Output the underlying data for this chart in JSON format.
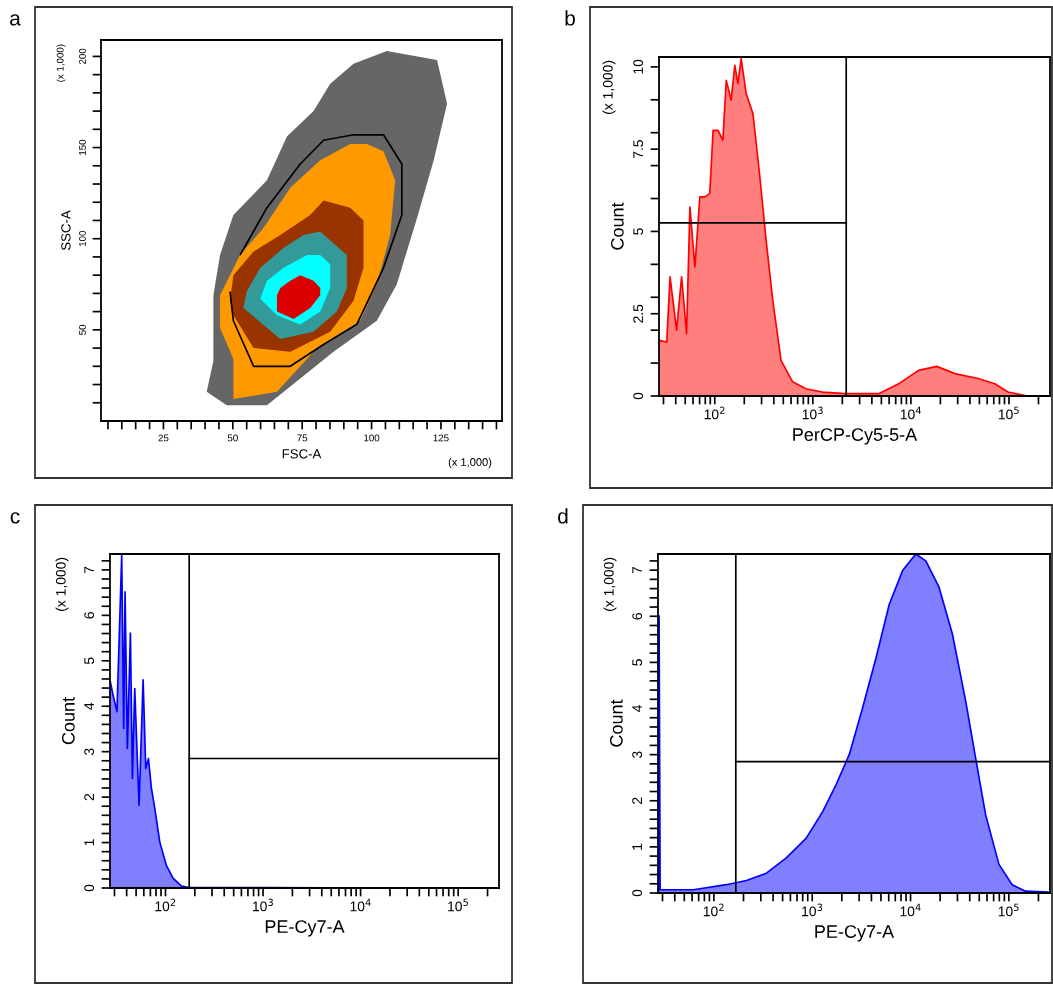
{
  "chart_data": [
    {
      "type": "area",
      "title": "a",
      "xlabel": "FSC-A",
      "ylabel": "SSC-A",
      "annotations": [
        "(x 1,000)",
        "(x 1,000)"
      ],
      "xlim": [
        2.5,
        147
      ],
      "ylim": [
        0,
        209
      ],
      "xticks": [
        {
          "value": 5,
          "label": null
        },
        {
          "value": 10,
          "label": null
        },
        {
          "value": 15,
          "label": null
        },
        {
          "value": 20,
          "label": null
        },
        25,
        {
          "value": 30,
          "label": null
        },
        {
          "value": 35,
          "label": null
        },
        {
          "value": 40,
          "label": null
        },
        {
          "value": 45,
          "label": null
        },
        50,
        {
          "value": 55,
          "label": null
        },
        {
          "value": 60,
          "label": null
        },
        {
          "value": 65,
          "label": null
        },
        {
          "value": 70,
          "label": null
        },
        75,
        {
          "value": 80,
          "label": null
        },
        {
          "value": 85,
          "label": null
        },
        {
          "value": 90,
          "label": null
        },
        {
          "value": 95,
          "label": null
        },
        100,
        {
          "value": 105,
          "label": null
        },
        {
          "value": 110,
          "label": null
        },
        {
          "value": 115,
          "label": null
        },
        {
          "value": 120,
          "label": null
        },
        125,
        {
          "value": 130,
          "label": null
        },
        {
          "value": 135,
          "label": null
        },
        {
          "value": 140,
          "label": null
        },
        {
          "value": 145,
          "label": null
        }
      ],
      "yticks": [
        {
          "value": 10,
          "label": null
        },
        {
          "value": 20,
          "label": null
        },
        {
          "value": 30,
          "label": null
        },
        {
          "value": 40,
          "label": null
        },
        50,
        {
          "value": 60,
          "label": null
        },
        {
          "value": 70,
          "label": null
        },
        {
          "value": 80,
          "label": null
        },
        {
          "value": 90,
          "label": null
        },
        100,
        {
          "value": 110,
          "label": null
        },
        {
          "value": 120,
          "label": null
        },
        {
          "value": 130,
          "label": null
        },
        {
          "value": 140,
          "label": null
        },
        150,
        {
          "value": 160,
          "label": null
        },
        {
          "value": 170,
          "label": null
        },
        {
          "value": 180,
          "label": null
        },
        {
          "value": 190,
          "label": null
        },
        200
      ],
      "series": [
        {
          "color": "#666666",
          "x": [
            40.6,
            47.8,
            62.3,
            86.3,
            101.9,
            109.1,
            116.3,
            122.4,
            127.2,
            123.6,
            105.5,
            93.5,
            85.1,
            79.1,
            69.5,
            62.3,
            50.2,
            45.4,
            43.0,
            43.0
          ],
          "values": [
            16,
            8.7,
            8.7,
            38,
            55,
            75,
            111,
            143,
            174,
            198,
            203,
            196,
            185,
            170,
            156,
            132,
            113,
            91,
            69,
            33
          ]
        },
        {
          "color": "#ff9900",
          "x": [
            50.2,
            65.9,
            80.3,
            95.9,
            101.9,
            106.7,
            108.5,
            104.3,
            98.3,
            92.3,
            81.5,
            70.7,
            61.1,
            52.6,
            45.4,
            45.4,
            50.2
          ],
          "values": [
            12,
            16,
            40,
            55,
            75,
            102,
            132,
            148,
            152,
            152,
            143,
            128,
            106,
            91,
            69,
            51,
            34
          ]
        },
        {
          "color": "#993300",
          "x": [
            50.2,
            57.5,
            70.7,
            85.1,
            93.5,
            97.1,
            97.1,
            92.3,
            82.7,
            77.9,
            67.1,
            57.5,
            50.2,
            49.0
          ],
          "values": [
            58,
            40,
            38,
            49,
            66,
            84,
            110,
            117,
            121,
            113,
            102,
            93,
            80,
            66
          ]
        },
        {
          "color": "#339999",
          "x": [
            53.8,
            67.1,
            79.1,
            87.5,
            91.1,
            91.1,
            85.1,
            81.5,
            75.5,
            68.3,
            59.9,
            55.0
          ],
          "values": [
            62,
            45,
            49,
            60,
            73,
            91,
            99,
            104,
            102,
            95,
            84,
            71
          ]
        },
        {
          "color": "#00ffff",
          "x": [
            59.9,
            65.9,
            74.3,
            81.5,
            85.1,
            85.1,
            81.5,
            76.7,
            68.3,
            62.3
          ],
          "values": [
            67,
            58,
            53,
            60,
            73,
            86,
            91,
            91,
            84,
            77
          ]
        },
        {
          "color": "#dd0000",
          "x": [
            65.9,
            65.9,
            71.9,
            77.9,
            81.5,
            81.5,
            79.1,
            74.3,
            70.7,
            67.1
          ],
          "values": [
            69,
            60,
            56,
            62,
            69,
            73,
            77,
            80,
            77,
            73
          ]
        },
        {
          "type": "line",
          "color": "#000000",
          "x": [
            49.0,
            50.2,
            57.5,
            70.7,
            82.7,
            94.7,
            104.3,
            110.9,
            110.9,
            104.3,
            93.5,
            82.7,
            74.3,
            62.3,
            52.6
          ],
          "values": [
            71,
            55,
            30,
            30,
            42,
            53,
            84,
            113,
            141,
            157,
            157,
            154,
            141,
            117,
            91
          ]
        }
      ]
    },
    {
      "type": "area",
      "title": "b",
      "xlabel": "PerCP-Cy5-5-A",
      "ylabel": "Count",
      "annotations": [
        "(x 1,000)"
      ],
      "log": "x",
      "xlim": [
        27,
        262144
      ],
      "ylim": [
        0,
        10.3
      ],
      "xticks": [
        {
          "value": 100,
          "label": "10$^{2}$"
        },
        {
          "value": 1000,
          "label": "10$^{3}$"
        },
        {
          "value": 10000,
          "label": "10$^{4}$"
        },
        {
          "value": 100000,
          "label": "10$^{5}$"
        }
      ],
      "yticks": [
        0,
        {
          "value": 1,
          "label": null
        },
        {
          "value": 2,
          "label": null
        },
        2.5,
        {
          "value": 3,
          "label": null
        },
        {
          "value": 4,
          "label": null
        },
        5,
        {
          "value": 6,
          "label": null
        },
        {
          "value": 7,
          "label": null
        },
        7.5,
        {
          "value": 8,
          "label": null
        },
        {
          "value": 9,
          "label": null
        },
        10
      ],
      "ref_lines": [
        {
          "axis": "x",
          "value": 2190,
          "color": "#000000"
        }
      ],
      "series": [
        {
          "color": "#ff0000",
          "x": [
            27.3,
            32.4,
            35,
            40.8,
            45.9,
            51.6,
            55.8,
            62.7,
            70.5,
            79.2,
            88.9,
            96.2,
            108,
            121,
            131,
            147,
            160,
            172,
            186,
            209,
            245,
            286,
            334,
            390,
            474,
            622,
            849,
            1253,
            2160,
            4700,
            7500,
            11970,
            18360,
            28100,
            48500,
            71600,
            97700,
            144000
          ],
          "values": [
            1.69,
            1.64,
            3.62,
            2.0,
            3.62,
            1.89,
            5.74,
            3.92,
            6.05,
            6.05,
            6.15,
            8.07,
            8.07,
            7.77,
            9.59,
            8.99,
            10.05,
            9.49,
            10.25,
            9.19,
            8.58,
            6.76,
            4.73,
            2.91,
            1.08,
            0.43,
            0.22,
            0.12,
            0.07,
            0.07,
            0.37,
            0.78,
            0.9,
            0.68,
            0.53,
            0.37,
            0.12,
            0.02
          ]
        },
        {
          "type": "line",
          "color": "#000000",
          "x": [
            27,
            2190
          ],
          "values": [
            5.26,
            5.26
          ]
        }
      ]
    },
    {
      "type": "area",
      "title": "c",
      "xlabel": "PE-Cy7-A",
      "ylabel": "Count",
      "annotations": [
        "(x 1,000)"
      ],
      "log": "x",
      "xlim": [
        27,
        262144
      ],
      "ylim": [
        0,
        7.35
      ],
      "xticks": [
        {
          "value": 100,
          "label": "10$^{2}$"
        },
        {
          "value": 1000,
          "label": "10$^{3}$"
        },
        {
          "value": 10000,
          "label": "10$^{4}$"
        },
        {
          "value": 100000,
          "label": "10$^{5}$"
        }
      ],
      "yticks": [
        0,
        {
          "value": 0.2,
          "label": null
        },
        {
          "value": 0.4,
          "label": null
        },
        {
          "value": 0.6,
          "label": null
        },
        {
          "value": 0.8,
          "label": null
        },
        1,
        {
          "value": 1.2,
          "label": null
        },
        {
          "value": 1.4,
          "label": null
        },
        {
          "value": 1.6,
          "label": null
        },
        {
          "value": 1.8,
          "label": null
        },
        2,
        {
          "value": 2.2,
          "label": null
        },
        {
          "value": 2.4,
          "label": null
        },
        {
          "value": 2.6,
          "label": null
        },
        {
          "value": 2.8,
          "label": null
        },
        3,
        {
          "value": 3.2,
          "label": null
        },
        {
          "value": 3.4,
          "label": null
        },
        {
          "value": 3.6,
          "label": null
        },
        {
          "value": 3.8,
          "label": null
        },
        4,
        {
          "value": 4.2,
          "label": null
        },
        {
          "value": 4.4,
          "label": null
        },
        {
          "value": 4.6,
          "label": null
        },
        {
          "value": 4.8,
          "label": null
        },
        5,
        {
          "value": 5.2,
          "label": null
        },
        {
          "value": 5.4,
          "label": null
        },
        {
          "value": 5.6,
          "label": null
        },
        {
          "value": 5.8,
          "label": null
        },
        6,
        {
          "value": 6.2,
          "label": null
        },
        {
          "value": 6.4,
          "label": null
        },
        {
          "value": 6.6,
          "label": null
        },
        {
          "value": 6.8,
          "label": null
        },
        7,
        {
          "value": 7.2,
          "label": null
        }
      ],
      "ref_lines": [
        {
          "axis": "x",
          "value": 175,
          "color": "#000000"
        }
      ],
      "series": [
        {
          "color": "#0000ff",
          "x": [
            27.2,
            29,
            31.8,
            35.6,
            37.3,
            38.5,
            40.7,
            43.7,
            45.8,
            48.4,
            53.6,
            59,
            62.8,
            66.9,
            71.8,
            77.7,
            87.5,
            102,
            120,
            146,
            178,
            1100,
            17200
          ],
          "values": [
            4.54,
            4.25,
            3.88,
            7.33,
            3.51,
            6.52,
            3.07,
            5.61,
            2.41,
            4.39,
            1.82,
            4.58,
            2.63,
            2.85,
            2.19,
            1.75,
            1.01,
            0.5,
            0.21,
            0.04,
            0.01,
            0.01,
            0
          ]
        },
        {
          "type": "line",
          "color": "#000000",
          "x": [
            175,
            262144
          ],
          "values": [
            2.85,
            2.85
          ]
        }
      ]
    },
    {
      "type": "area",
      "title": "d",
      "xlabel": "PE-Cy7-A",
      "ylabel": "Count",
      "annotations": [
        "(x 1,000)"
      ],
      "log": "x",
      "xlim": [
        27,
        262144
      ],
      "ylim": [
        0,
        7.35
      ],
      "xticks": [
        {
          "value": 100,
          "label": "10$^{2}$"
        },
        {
          "value": 1000,
          "label": "10$^{3}$"
        },
        {
          "value": 10000,
          "label": "10$^{4}$"
        },
        {
          "value": 100000,
          "label": "10$^{5}$"
        }
      ],
      "yticks": [
        0,
        {
          "value": 0.2,
          "label": null
        },
        {
          "value": 0.4,
          "label": null
        },
        {
          "value": 0.6,
          "label": null
        },
        {
          "value": 0.8,
          "label": null
        },
        1,
        {
          "value": 1.2,
          "label": null
        },
        {
          "value": 1.4,
          "label": null
        },
        {
          "value": 1.6,
          "label": null
        },
        {
          "value": 1.8,
          "label": null
        },
        2,
        {
          "value": 2.2,
          "label": null
        },
        {
          "value": 2.4,
          "label": null
        },
        {
          "value": 2.6,
          "label": null
        },
        {
          "value": 2.8,
          "label": null
        },
        3,
        {
          "value": 3.2,
          "label": null
        },
        {
          "value": 3.4,
          "label": null
        },
        {
          "value": 3.6,
          "label": null
        },
        {
          "value": 3.8,
          "label": null
        },
        4,
        {
          "value": 4.2,
          "label": null
        },
        {
          "value": 4.4,
          "label": null
        },
        {
          "value": 4.6,
          "label": null
        },
        {
          "value": 4.8,
          "label": null
        },
        5,
        {
          "value": 5.2,
          "label": null
        },
        {
          "value": 5.4,
          "label": null
        },
        {
          "value": 5.6,
          "label": null
        },
        {
          "value": 5.8,
          "label": null
        },
        6,
        {
          "value": 6.2,
          "label": null
        },
        {
          "value": 6.4,
          "label": null
        },
        {
          "value": 6.6,
          "label": null
        },
        {
          "value": 6.8,
          "label": null
        },
        7,
        {
          "value": 7.2,
          "label": null
        }
      ],
      "ref_lines": [
        {
          "axis": "x",
          "value": 167,
          "color": "#000000"
        }
      ],
      "series": [
        {
          "color": "#0000ff",
          "x": [
            27.4,
            27.7,
            28.4,
            61.8,
            134,
            214,
            342,
            545,
            869,
            1282,
            1750,
            2390,
            3260,
            4460,
            6080,
            8300,
            11320,
            14300,
            19500,
            26700,
            36400,
            45900,
            58000,
            79300,
            108000,
            148000,
            250000
          ],
          "values": [
            0,
            6.01,
            0.07,
            0.07,
            0.18,
            0.27,
            0.43,
            0.76,
            1.19,
            1.77,
            2.35,
            3.01,
            4.02,
            5.1,
            6.26,
            6.99,
            7.35,
            7.2,
            6.63,
            5.61,
            4.16,
            2.93,
            1.7,
            0.62,
            0.18,
            0.04,
            0.02
          ]
        },
        {
          "type": "line",
          "color": "#000000",
          "x": [
            167,
            262144
          ],
          "values": [
            2.85,
            2.85
          ]
        }
      ]
    }
  ]
}
